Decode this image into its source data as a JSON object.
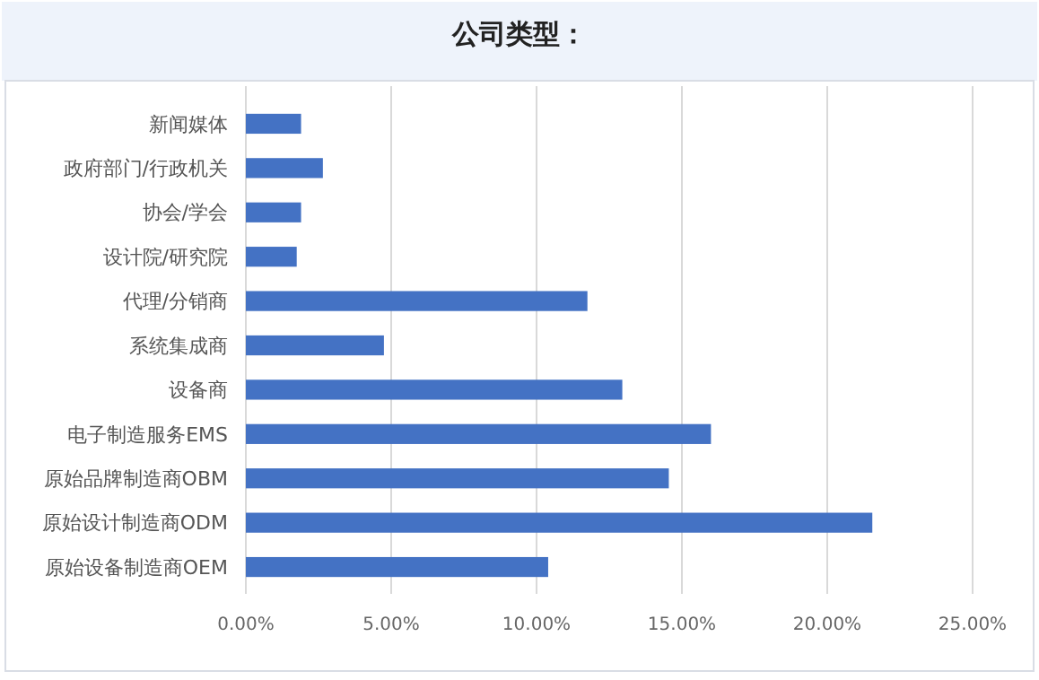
{
  "chart_data": {
    "type": "bar",
    "orientation": "horizontal",
    "title": "公司类型：",
    "categories": [
      "新闻媒体",
      "政府部门/行政机关",
      "协会/学会",
      "设计院/研究院",
      "代理/分销商",
      "系统集成商",
      "设备商",
      "电子制造服务EMS",
      "原始品牌制造商OBM",
      "原始设计制造商ODM",
      "原始设备制造商OEM"
    ],
    "values": [
      1.9,
      2.65,
      1.9,
      1.75,
      11.75,
      4.75,
      12.95,
      16.0,
      14.55,
      21.55,
      10.4
    ],
    "color": "#4472c4",
    "xlim": [
      0,
      25
    ],
    "xticks": [
      {
        "value": 0,
        "label": "0.00%"
      },
      {
        "value": 5,
        "label": "5.00%"
      },
      {
        "value": 10,
        "label": "10.00%"
      },
      {
        "value": 15,
        "label": "15.00%"
      },
      {
        "value": 20,
        "label": "20.00%"
      },
      {
        "value": 25,
        "label": "25.00%"
      }
    ],
    "grid": "x"
  }
}
